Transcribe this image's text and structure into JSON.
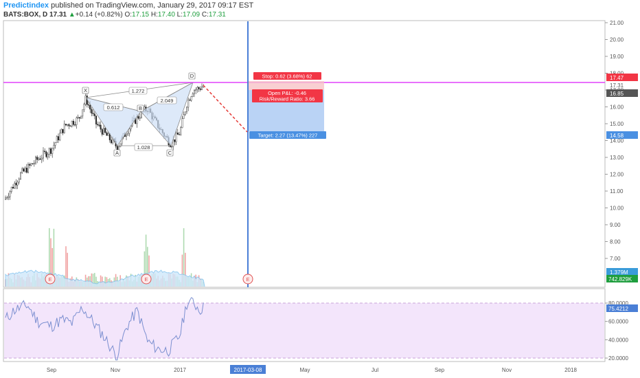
{
  "header": {
    "publisher": "Predictindex",
    "published_text": " published on TradingView.com, January 29, 2017 09:17 EST",
    "symbol": "BATS:BOX, D",
    "price": "17.31",
    "change": "+0.14 (+0.82%)",
    "open_label": "O:",
    "open": "17.15",
    "high_label": "H:",
    "high": "17.40",
    "low_label": "L:",
    "low": "17.09",
    "close_label": "C:",
    "close": "17.31"
  },
  "price_axis": {
    "ticks": [
      "21.00",
      "20.00",
      "19.00",
      "18.00",
      "17.00",
      "16.00",
      "15.00",
      "14.00",
      "13.00",
      "12.00",
      "11.00",
      "10.00",
      "9.00",
      "8.00",
      "7.00"
    ],
    "label_stop": "17.47",
    "label_last": "17.31",
    "label_entry": "16.85",
    "label_target": "14.58",
    "label_vol_ma": "1.379M",
    "label_vol": "742.829K"
  },
  "rsi_axis": {
    "ticks": [
      "80.0000",
      "60.0000",
      "40.0000",
      "20.0000"
    ],
    "current": "75.4212"
  },
  "time_axis": {
    "labels": [
      "Sep",
      "Nov",
      "2017",
      "Mar",
      "May",
      "Jul",
      "Sep",
      "Nov",
      "2018"
    ],
    "highlight": "2017-03-08"
  },
  "pattern": {
    "points": [
      "X",
      "A",
      "B",
      "C",
      "D"
    ],
    "ratios": [
      "1.272",
      "0.612",
      "2.049",
      "1.028"
    ]
  },
  "trade": {
    "stop_label": "Stop: 0.62 (3.68%) 62",
    "pnl_label": "Open P&L: -0.46",
    "rr_label": "Risk/Reward Ratio: 3.66",
    "target_label": "Target: 2.27 (13.47%) 227"
  },
  "events": [
    "E",
    "E",
    "E"
  ],
  "colors": {
    "up": "#1e9e3e",
    "down": "#e00000",
    "accent": "#2196f3",
    "fib_line": "#e040fb",
    "stop_red": "#f23645",
    "target_blue": "#4a90e2",
    "rsi_band": "#f3e5fb"
  }
}
